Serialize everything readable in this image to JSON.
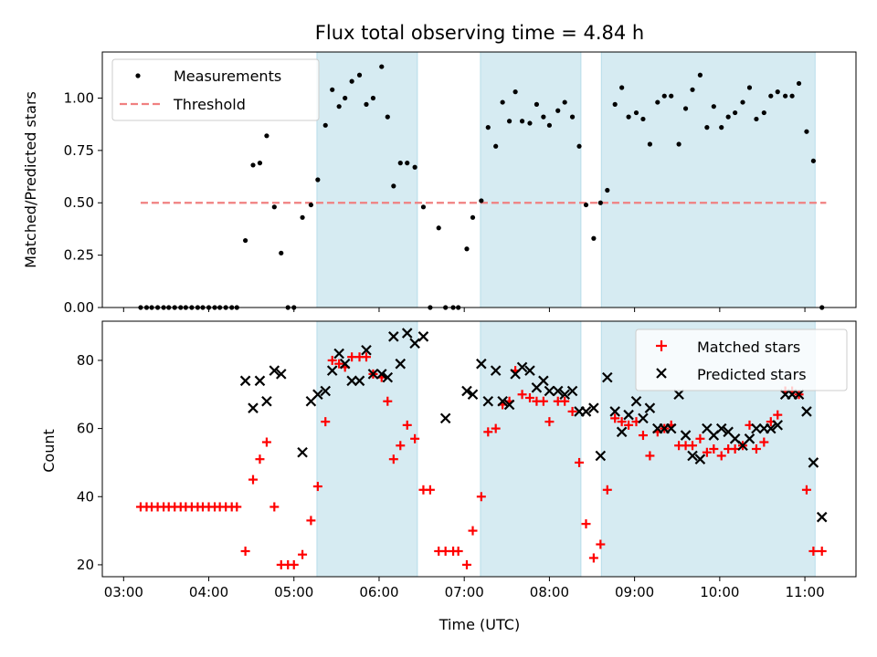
{
  "chart_data": {
    "title": "Flux total observing time = 4.84 h",
    "xlabel": "Time (UTC)",
    "x_ticks": [
      "03:00",
      "04:00",
      "05:00",
      "06:00",
      "07:00",
      "08:00",
      "09:00",
      "10:00",
      "11:00"
    ],
    "x_range_hours": [
      2.75,
      11.6
    ],
    "shaded_intervals_hours": [
      [
        5.27,
        6.45
      ],
      [
        7.19,
        8.37
      ],
      [
        8.61,
        11.12
      ]
    ],
    "shade_color": "#add8e6",
    "panels": [
      {
        "type": "scatter",
        "ylabel": "Matched/Predicted stars",
        "ylim": [
          0,
          1.22
        ],
        "yticks": [
          "0.00",
          "0.25",
          "0.50",
          "0.75",
          "1.00"
        ],
        "legend_position": "top-left",
        "threshold": {
          "name": "Threshold",
          "value": 0.5,
          "x_range": [
            3.2,
            11.25
          ],
          "color": "#f08080"
        },
        "series": [
          {
            "name": "Measurements",
            "color": "#000000",
            "marker": "dot",
            "x": [
              3.2,
              3.27,
              3.33,
              3.4,
              3.47,
              3.53,
              3.6,
              3.67,
              3.73,
              3.8,
              3.87,
              3.93,
              4.0,
              4.07,
              4.13,
              4.2,
              4.27,
              4.33,
              4.43,
              4.52,
              4.6,
              4.68,
              4.77,
              4.85,
              4.93,
              5.0,
              5.1,
              5.2,
              5.28,
              5.37,
              5.45,
              5.53,
              5.6,
              5.68,
              5.77,
              5.85,
              5.93,
              6.03,
              6.1,
              6.17,
              6.25,
              6.33,
              6.42,
              6.52,
              6.6,
              6.7,
              6.78,
              6.87,
              6.93,
              7.03,
              7.1,
              7.2,
              7.28,
              7.37,
              7.45,
              7.53,
              7.6,
              7.68,
              7.77,
              7.85,
              7.93,
              8.0,
              8.1,
              8.18,
              8.27,
              8.35,
              8.43,
              8.52,
              8.6,
              8.68,
              8.77,
              8.85,
              8.93,
              9.02,
              9.1,
              9.18,
              9.27,
              9.35,
              9.43,
              9.52,
              9.6,
              9.68,
              9.77,
              9.85,
              9.93,
              10.02,
              10.1,
              10.18,
              10.27,
              10.35,
              10.43,
              10.52,
              10.6,
              10.68,
              10.77,
              10.85,
              10.93,
              11.02,
              11.1,
              11.2
            ],
            "y": [
              0,
              0,
              0,
              0,
              0,
              0,
              0,
              0,
              0,
              0,
              0,
              0,
              0,
              0,
              0,
              0,
              0,
              0,
              0.32,
              0.68,
              0.69,
              0.82,
              0.48,
              0.26,
              0,
              0,
              0.43,
              0.49,
              0.61,
              0.87,
              1.04,
              0.96,
              1.0,
              1.08,
              1.11,
              0.97,
              1.0,
              1.15,
              0.91,
              0.58,
              0.69,
              0.69,
              0.67,
              0.48,
              0,
              0.38,
              0,
              0,
              0,
              0.28,
              0.43,
              0.51,
              0.86,
              0.77,
              0.98,
              0.89,
              1.03,
              0.89,
              0.88,
              0.97,
              0.91,
              0.87,
              0.94,
              0.98,
              0.91,
              0.77,
              0.49,
              0.33,
              0.5,
              0.56,
              0.97,
              1.05,
              0.91,
              0.93,
              0.9,
              0.78,
              0.98,
              1.01,
              1.01,
              0.78,
              0.95,
              1.04,
              1.11,
              0.86,
              0.96,
              0.86,
              0.91,
              0.93,
              0.98,
              1.05,
              0.9,
              0.93,
              1.01,
              1.03,
              1.01,
              1.01,
              1.07,
              0.84,
              0.7,
              0
            ]
          }
        ]
      },
      {
        "type": "scatter",
        "ylabel": "Count",
        "ylim": [
          16.5,
          91.5
        ],
        "yticks": [
          "20",
          "40",
          "60",
          "80"
        ],
        "legend_position": "top-right",
        "series": [
          {
            "name": "Matched stars",
            "color": "#ff0000",
            "marker": "plus",
            "x": [
              3.2,
              3.27,
              3.33,
              3.4,
              3.47,
              3.53,
              3.6,
              3.67,
              3.73,
              3.8,
              3.87,
              3.93,
              4.0,
              4.07,
              4.13,
              4.2,
              4.27,
              4.33,
              4.43,
              4.52,
              4.6,
              4.68,
              4.77,
              4.85,
              4.93,
              5.0,
              5.1,
              5.2,
              5.28,
              5.37,
              5.45,
              5.53,
              5.6,
              5.68,
              5.77,
              5.85,
              5.93,
              6.03,
              6.1,
              6.17,
              6.25,
              6.33,
              6.42,
              6.52,
              6.6,
              6.7,
              6.78,
              6.87,
              6.93,
              7.03,
              7.1,
              7.2,
              7.28,
              7.37,
              7.45,
              7.53,
              7.6,
              7.68,
              7.77,
              7.85,
              7.93,
              8.0,
              8.1,
              8.18,
              8.27,
              8.35,
              8.43,
              8.52,
              8.6,
              8.68,
              8.77,
              8.85,
              8.93,
              9.02,
              9.1,
              9.18,
              9.27,
              9.35,
              9.43,
              9.52,
              9.6,
              9.68,
              9.77,
              9.85,
              9.93,
              10.02,
              10.1,
              10.18,
              10.27,
              10.35,
              10.43,
              10.52,
              10.6,
              10.68,
              10.77,
              10.85,
              10.93,
              11.02,
              11.1,
              11.2
            ],
            "y": [
              37,
              37,
              37,
              37,
              37,
              37,
              37,
              37,
              37,
              37,
              37,
              37,
              37,
              37,
              37,
              37,
              37,
              37,
              24,
              45,
              51,
              56,
              37,
              20,
              20,
              20,
              23,
              33,
              43,
              62,
              80,
              79,
              78,
              81,
              81,
              81,
              76,
              75,
              68,
              51,
              55,
              61,
              57,
              42,
              42,
              24,
              24,
              24,
              24,
              20,
              30,
              40,
              59,
              60,
              67,
              68,
              77,
              70,
              69,
              68,
              68,
              62,
              68,
              68,
              65,
              50,
              32,
              22,
              26,
              42,
              63,
              62,
              61,
              62,
              58,
              52,
              59,
              60,
              61,
              55,
              55,
              55,
              57,
              53,
              54,
              52,
              54,
              54,
              55,
              61,
              54,
              56,
              62,
              64,
              71,
              71,
              70,
              42,
              24,
              24
            ]
          },
          {
            "name": "Predicted stars",
            "color": "#000000",
            "marker": "x",
            "x": [
              4.43,
              4.52,
              4.6,
              4.68,
              4.77,
              4.85,
              5.1,
              5.2,
              5.28,
              5.37,
              5.45,
              5.53,
              5.6,
              5.68,
              5.77,
              5.85,
              5.93,
              6.03,
              6.1,
              6.17,
              6.25,
              6.33,
              6.42,
              6.52,
              6.78,
              7.03,
              7.1,
              7.2,
              7.28,
              7.37,
              7.45,
              7.53,
              7.6,
              7.68,
              7.77,
              7.85,
              7.93,
              8.0,
              8.1,
              8.18,
              8.27,
              8.35,
              8.43,
              8.52,
              8.6,
              8.68,
              8.77,
              8.85,
              8.93,
              9.02,
              9.1,
              9.18,
              9.27,
              9.35,
              9.43,
              9.52,
              9.6,
              9.68,
              9.77,
              9.85,
              9.93,
              10.02,
              10.1,
              10.18,
              10.27,
              10.35,
              10.43,
              10.52,
              10.6,
              10.68,
              10.77,
              10.85,
              10.93,
              11.02,
              11.1,
              11.2
            ],
            "y": [
              74,
              66,
              74,
              68,
              77,
              76,
              53,
              68,
              70,
              71,
              77,
              82,
              79,
              74,
              74,
              83,
              76,
              76,
              75,
              87,
              79,
              88,
              85,
              87,
              63,
              71,
              70,
              79,
              68,
              77,
              68,
              67,
              76,
              78,
              77,
              72,
              74,
              71,
              71,
              70,
              71,
              65,
              65,
              66,
              52,
              75,
              65,
              59,
              64,
              68,
              63,
              66,
              60,
              60,
              60,
              70,
              58,
              52,
              51,
              60,
              58,
              60,
              59,
              57,
              55,
              57,
              60,
              60,
              60,
              61,
              70,
              70,
              70,
              65,
              50,
              34
            ]
          }
        ]
      }
    ]
  }
}
